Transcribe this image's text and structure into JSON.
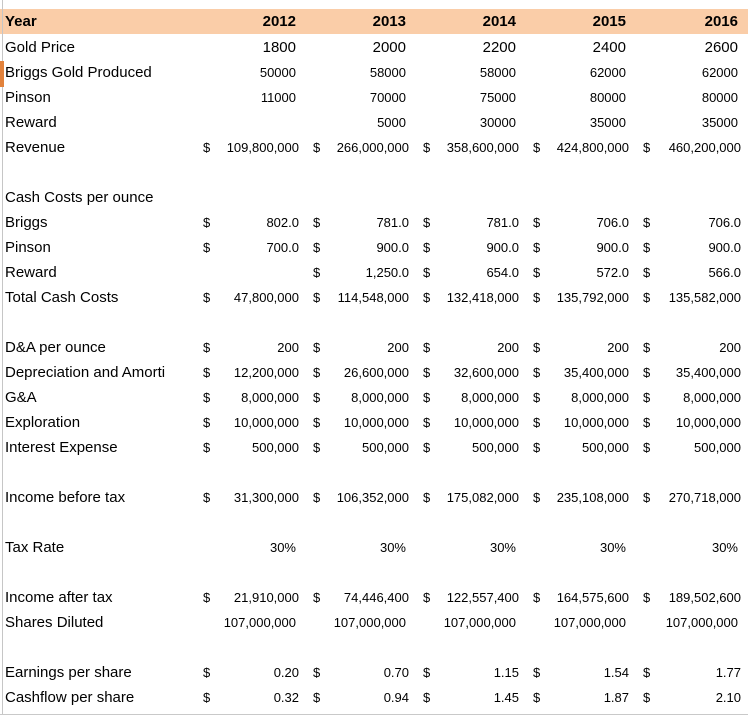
{
  "sheet": {
    "currency_symbol": "$",
    "colors": {
      "header_bg": "#FACDA8",
      "left_strip": "#E2823C",
      "gridline": "#C6C6C6",
      "text": "#000000",
      "background": "#FFFFFF"
    },
    "header": {
      "label": "Year",
      "years": [
        "2012",
        "2013",
        "2014",
        "2015",
        "2016"
      ]
    },
    "rows": [
      {
        "label": "Gold Price",
        "type": "plain",
        "size": "large",
        "values": [
          "1800",
          "2000",
          "2200",
          "2400",
          "2600"
        ]
      },
      {
        "label": "Briggs Gold Produced",
        "type": "plain",
        "values": [
          "50000",
          "58000",
          "58000",
          "62000",
          "62000"
        ]
      },
      {
        "label": "Pinson",
        "type": "plain",
        "values": [
          "11000",
          "70000",
          "75000",
          "80000",
          "80000"
        ]
      },
      {
        "label": "Reward",
        "type": "plain",
        "values": [
          "",
          "5000",
          "30000",
          "35000",
          "35000"
        ]
      },
      {
        "label": "Revenue",
        "type": "acct",
        "values": [
          "109,800,000",
          "266,000,000",
          "358,600,000",
          "424,800,000",
          "460,200,000"
        ]
      },
      {
        "type": "spacer"
      },
      {
        "label": "Cash Costs per ounce",
        "type": "section",
        "values": [
          "",
          "",
          "",
          "",
          ""
        ]
      },
      {
        "label": "Briggs",
        "type": "acct",
        "values": [
          "802.0",
          "781.0",
          "781.0",
          "706.0",
          "706.0"
        ]
      },
      {
        "label": "Pinson",
        "type": "acct",
        "values": [
          "700.0",
          "900.0",
          "900.0",
          "900.0",
          "900.0"
        ]
      },
      {
        "label": "Reward",
        "type": "acct",
        "values": [
          "",
          "1,250.0",
          "654.0",
          "572.0",
          "566.0"
        ]
      },
      {
        "label": "Total Cash Costs",
        "type": "acct",
        "values": [
          "47,800,000",
          "114,548,000",
          "132,418,000",
          "135,792,000",
          "135,582,000"
        ]
      },
      {
        "type": "spacer"
      },
      {
        "label": "D&A per ounce",
        "type": "acct",
        "values": [
          "200",
          "200",
          "200",
          "200",
          "200"
        ]
      },
      {
        "label": "Depreciation and Amorti",
        "type": "acct",
        "values": [
          "12,200,000",
          "26,600,000",
          "32,600,000",
          "35,400,000",
          "35,400,000"
        ]
      },
      {
        "label": "G&A",
        "type": "acct",
        "values": [
          "8,000,000",
          "8,000,000",
          "8,000,000",
          "8,000,000",
          "8,000,000"
        ]
      },
      {
        "label": "Exploration",
        "type": "acct",
        "values": [
          "10,000,000",
          "10,000,000",
          "10,000,000",
          "10,000,000",
          "10,000,000"
        ]
      },
      {
        "label": "Interest Expense",
        "type": "acct",
        "values": [
          "500,000",
          "500,000",
          "500,000",
          "500,000",
          "500,000"
        ]
      },
      {
        "type": "spacer"
      },
      {
        "label": "Income before tax",
        "type": "acct",
        "values": [
          "31,300,000",
          "106,352,000",
          "175,082,000",
          "235,108,000",
          "270,718,000"
        ]
      },
      {
        "type": "spacer"
      },
      {
        "label": "Tax Rate",
        "type": "plain",
        "values": [
          "30%",
          "30%",
          "30%",
          "30%",
          "30%"
        ]
      },
      {
        "type": "spacer"
      },
      {
        "label": "Income after tax",
        "type": "acct",
        "values": [
          "21,910,000",
          "74,446,400",
          "122,557,400",
          "164,575,600",
          "189,502,600"
        ]
      },
      {
        "label": "Shares Diluted",
        "type": "plain",
        "values": [
          "107,000,000",
          "107,000,000",
          "107,000,000",
          "107,000,000",
          "107,000,000"
        ]
      },
      {
        "type": "spacer"
      },
      {
        "label": "Earnings per share",
        "type": "acct",
        "values": [
          "0.20",
          "0.70",
          "1.15",
          "1.54",
          "1.77"
        ]
      },
      {
        "label": "Cashflow per share",
        "type": "acct",
        "values": [
          "0.32",
          "0.94",
          "1.45",
          "1.87",
          "2.10"
        ]
      }
    ]
  }
}
